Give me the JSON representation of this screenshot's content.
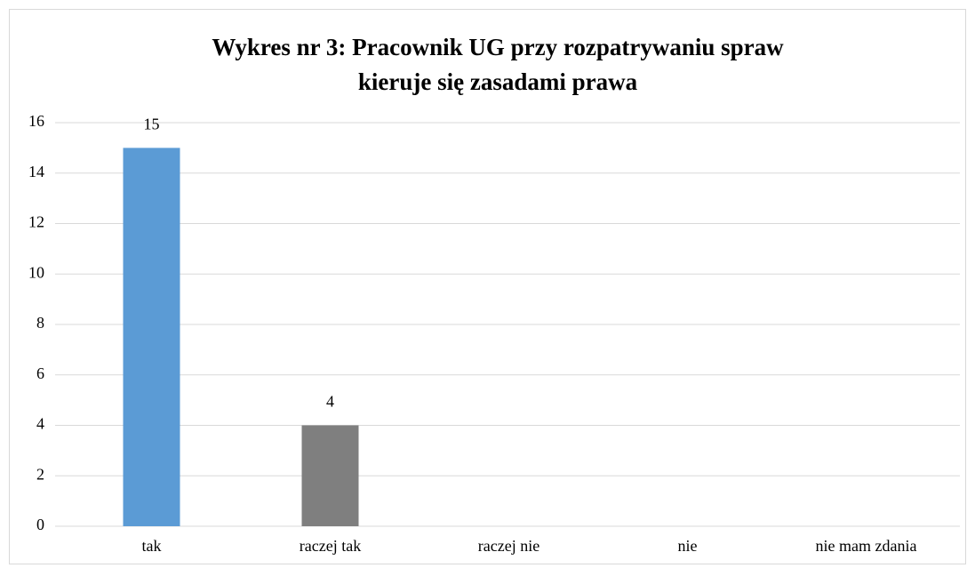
{
  "chart_data": {
    "type": "bar",
    "title": [
      "Wykres nr 3: Pracownik UG przy rozpatrywaniu spraw",
      "kieruje się zasadami prawa"
    ],
    "categories": [
      "tak",
      "raczej tak",
      "raczej nie",
      "nie",
      "nie mam zdania"
    ],
    "values": [
      15,
      4,
      null,
      null,
      null
    ],
    "colors": [
      "#5b9bd5",
      "#7f7f7f",
      null,
      null,
      null
    ],
    "ylim": [
      0,
      16
    ],
    "yticks": [
      0,
      2,
      4,
      6,
      8,
      10,
      12,
      14,
      16
    ],
    "grid": true
  }
}
